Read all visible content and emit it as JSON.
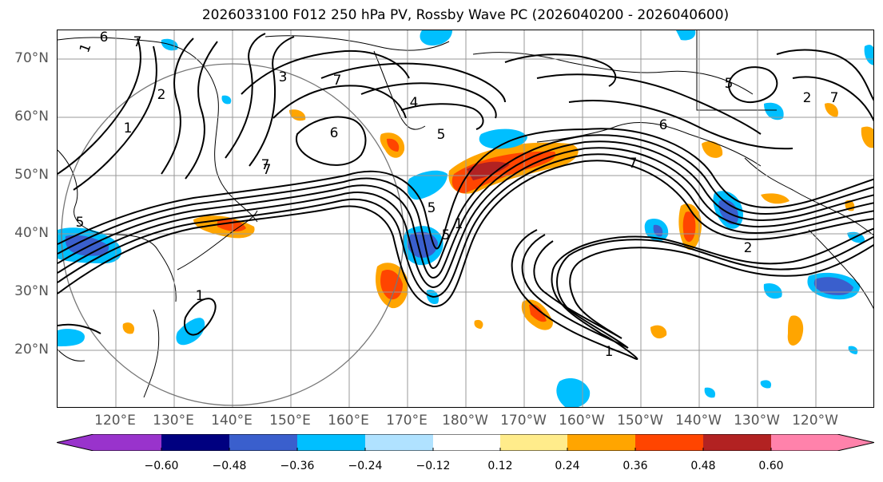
{
  "title": "2026033100 F012 250 hPa PV, Rossby Wave PC (2026040200 - 2026040600)",
  "lat_axis": {
    "labels": [
      "70°N",
      "60°N",
      "50°N",
      "40°N",
      "30°N",
      "20°N"
    ],
    "values": [
      70,
      60,
      50,
      40,
      30,
      20
    ],
    "range": [
      10,
      75
    ]
  },
  "lon_axis": {
    "labels": [
      "120°E",
      "130°E",
      "140°E",
      "150°E",
      "160°E",
      "170°E",
      "180°W",
      "170°W",
      "160°W",
      "150°W",
      "140°W",
      "130°W",
      "120°W"
    ],
    "values": [
      120,
      130,
      140,
      150,
      160,
      170,
      180,
      190,
      200,
      210,
      220,
      230,
      240
    ],
    "range": [
      110,
      250
    ]
  },
  "colorbar": {
    "tick_labels": [
      "−0.60",
      "−0.48",
      "−0.36",
      "−0.24",
      "−0.12",
      "0.12",
      "0.24",
      "0.36",
      "0.48",
      "0.60"
    ],
    "colors": {
      "extend_low": "#9933cc",
      "bins": [
        "#9933cc",
        "#000080",
        "#3a5fcd",
        "#00bfff",
        "#b0e2ff",
        "#ffffff",
        "#ffec8b",
        "#ffa500",
        "#ff4500",
        "#b22222",
        "#ff82ab"
      ],
      "extend_high": "#ff82ab"
    }
  },
  "contour_labels": [
    "1",
    "5",
    "2",
    "1",
    "7",
    "6",
    "7",
    "6",
    "7",
    "7",
    "5",
    "4",
    "5",
    "5",
    "7",
    "7",
    "6",
    "1",
    "2",
    "1",
    "3",
    "5",
    "2",
    "1"
  ],
  "colors": {
    "contour": "#000000",
    "coast": "#000000",
    "grid": "#999999",
    "circle": "#777777"
  }
}
